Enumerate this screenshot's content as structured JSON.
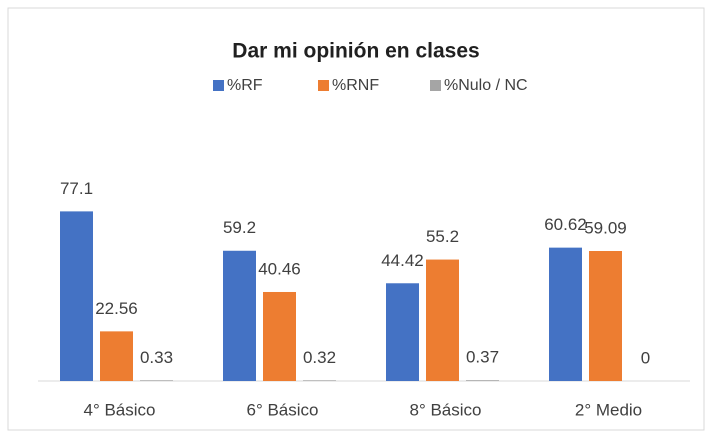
{
  "chart_data": {
    "type": "bar",
    "title": "Dar mi opinión en clases",
    "categories": [
      "4° Básico",
      "6° Básico",
      "8° Básico",
      "2° Medio"
    ],
    "series": [
      {
        "name": "%RF",
        "color": "#4472c4",
        "values": [
          77.1,
          59.2,
          44.42,
          60.62
        ]
      },
      {
        "name": "%RNF",
        "color": "#ed7d31",
        "values": [
          22.56,
          40.46,
          55.2,
          59.09
        ]
      },
      {
        "name": "%Nulo / NC",
        "color": "#a5a5a5",
        "values": [
          0.33,
          0.32,
          0.37,
          0
        ]
      }
    ],
    "ylim": [
      0,
      90
    ],
    "legend": "top"
  }
}
